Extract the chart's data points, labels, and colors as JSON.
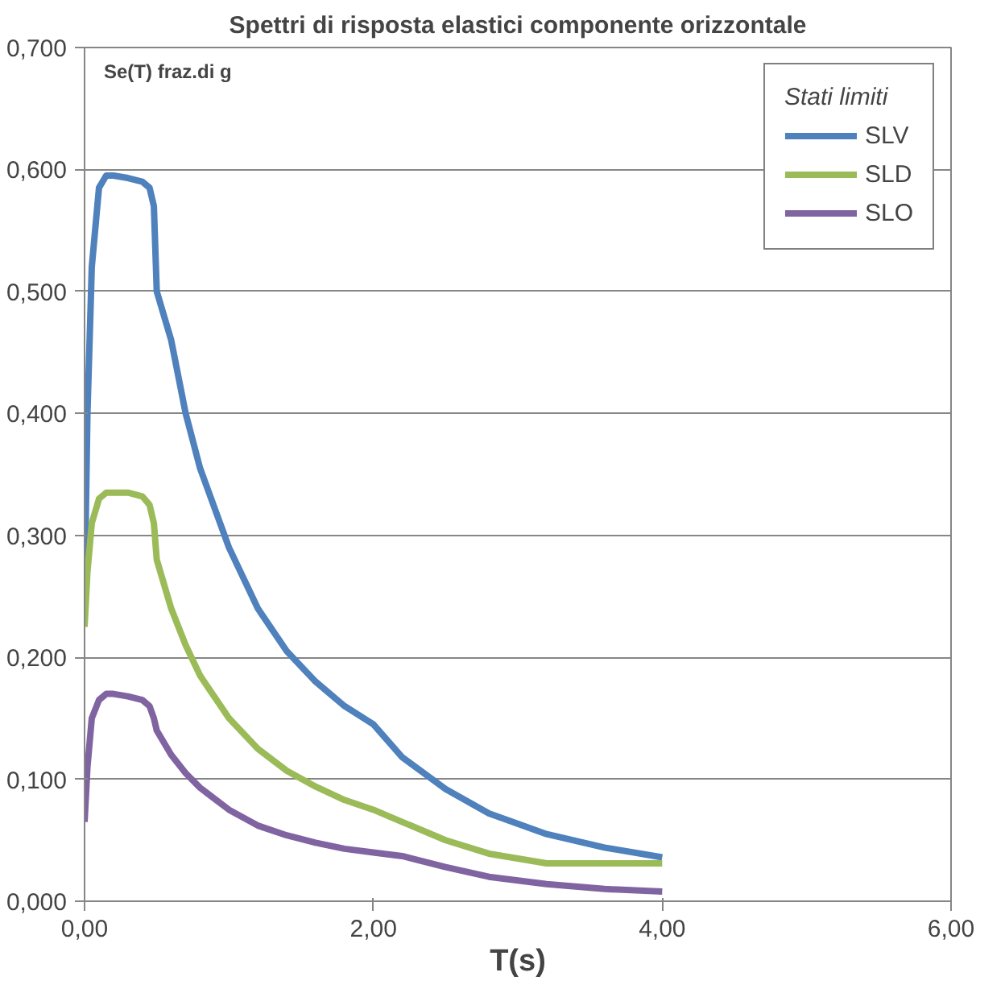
{
  "chart_data": {
    "type": "line",
    "title": "Spettri di risposta elastici componente orizzontale",
    "xlabel": "T(s)",
    "ylabel": "Se(T) fraz.di g",
    "legend_title": "Stati limiti",
    "x": [
      0,
      0.02,
      0.05,
      0.1,
      0.15,
      0.2,
      0.3,
      0.4,
      0.45,
      0.48,
      0.5,
      0.6,
      0.7,
      0.8,
      1.0,
      1.2,
      1.4,
      1.6,
      1.8,
      2.0,
      2.2,
      2.5,
      2.8,
      3.2,
      3.6,
      4.0
    ],
    "series": [
      {
        "name": "SLV",
        "color": "#4f81bd",
        "values": [
          0.25,
          0.4,
          0.52,
          0.585,
          0.595,
          0.595,
          0.593,
          0.59,
          0.585,
          0.57,
          0.5,
          0.46,
          0.4,
          0.355,
          0.29,
          0.24,
          0.205,
          0.18,
          0.16,
          0.145,
          0.118,
          0.092,
          0.072,
          0.055,
          0.044,
          0.036
        ]
      },
      {
        "name": "SLD",
        "color": "#9bbb59",
        "values": [
          0.225,
          0.27,
          0.31,
          0.33,
          0.335,
          0.335,
          0.335,
          0.332,
          0.325,
          0.31,
          0.28,
          0.24,
          0.21,
          0.185,
          0.15,
          0.125,
          0.107,
          0.094,
          0.083,
          0.075,
          0.065,
          0.05,
          0.039,
          0.031,
          0.031,
          0.031
        ]
      },
      {
        "name": "SLO",
        "color": "#8064a2",
        "values": [
          0.065,
          0.11,
          0.15,
          0.165,
          0.17,
          0.17,
          0.168,
          0.165,
          0.16,
          0.15,
          0.14,
          0.12,
          0.105,
          0.093,
          0.075,
          0.062,
          0.054,
          0.048,
          0.043,
          0.04,
          0.037,
          0.028,
          0.02,
          0.014,
          0.01,
          0.008
        ]
      }
    ],
    "xlim": [
      0,
      6
    ],
    "ylim": [
      0,
      0.7
    ],
    "xticks": [
      {
        "value": 0,
        "label": "0,00"
      },
      {
        "value": 2,
        "label": "2,00"
      },
      {
        "value": 4,
        "label": "4,00"
      },
      {
        "value": 6,
        "label": "6,00"
      }
    ],
    "yticks": [
      {
        "value": 0,
        "label": "0,000"
      },
      {
        "value": 0.1,
        "label": "0,100"
      },
      {
        "value": 0.2,
        "label": "0,200"
      },
      {
        "value": 0.3,
        "label": "0,300"
      },
      {
        "value": 0.4,
        "label": "0,400"
      },
      {
        "value": 0.5,
        "label": "0,500"
      },
      {
        "value": 0.6,
        "label": "0,600"
      },
      {
        "value": 0.7,
        "label": "0,700"
      }
    ],
    "grid": "y",
    "legend": "top right",
    "marker": "none",
    "line_style": "solid"
  }
}
